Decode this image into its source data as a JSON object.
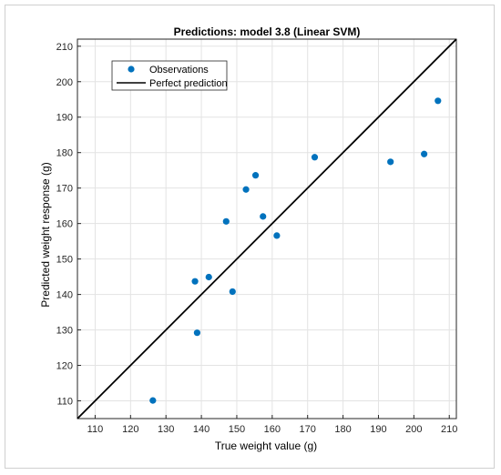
{
  "chart_data": {
    "type": "scatter",
    "title": "Predictions: model 3.8 (Linear SVM)",
    "xlabel": "True weight value (g)",
    "ylabel": "Predicted  weight  response (g)",
    "xlim": [
      105,
      212
    ],
    "ylim": [
      105,
      212
    ],
    "xticks": [
      110,
      120,
      130,
      140,
      150,
      160,
      170,
      180,
      190,
      200,
      210
    ],
    "yticks": [
      110,
      120,
      130,
      140,
      150,
      160,
      170,
      180,
      190,
      200,
      210
    ],
    "grid": true,
    "legend_position": "top-left",
    "series": [
      {
        "name": "Observations",
        "kind": "scatter",
        "color": "#0072BD",
        "points": [
          {
            "x": 126.3,
            "y": 110.1
          },
          {
            "x": 138.2,
            "y": 143.7
          },
          {
            "x": 138.8,
            "y": 129.2
          },
          {
            "x": 142.1,
            "y": 144.9
          },
          {
            "x": 147.0,
            "y": 160.6
          },
          {
            "x": 148.8,
            "y": 140.8
          },
          {
            "x": 152.6,
            "y": 169.6
          },
          {
            "x": 155.3,
            "y": 173.6
          },
          {
            "x": 157.4,
            "y": 162.0
          },
          {
            "x": 161.3,
            "y": 156.6
          },
          {
            "x": 172.0,
            "y": 178.7
          },
          {
            "x": 193.4,
            "y": 177.4
          },
          {
            "x": 202.9,
            "y": 179.6
          },
          {
            "x": 206.8,
            "y": 194.6
          }
        ]
      },
      {
        "name": "Perfect prediction",
        "kind": "line",
        "color": "#000000",
        "points": [
          {
            "x": 105,
            "y": 105
          },
          {
            "x": 212,
            "y": 212
          }
        ]
      }
    ]
  }
}
